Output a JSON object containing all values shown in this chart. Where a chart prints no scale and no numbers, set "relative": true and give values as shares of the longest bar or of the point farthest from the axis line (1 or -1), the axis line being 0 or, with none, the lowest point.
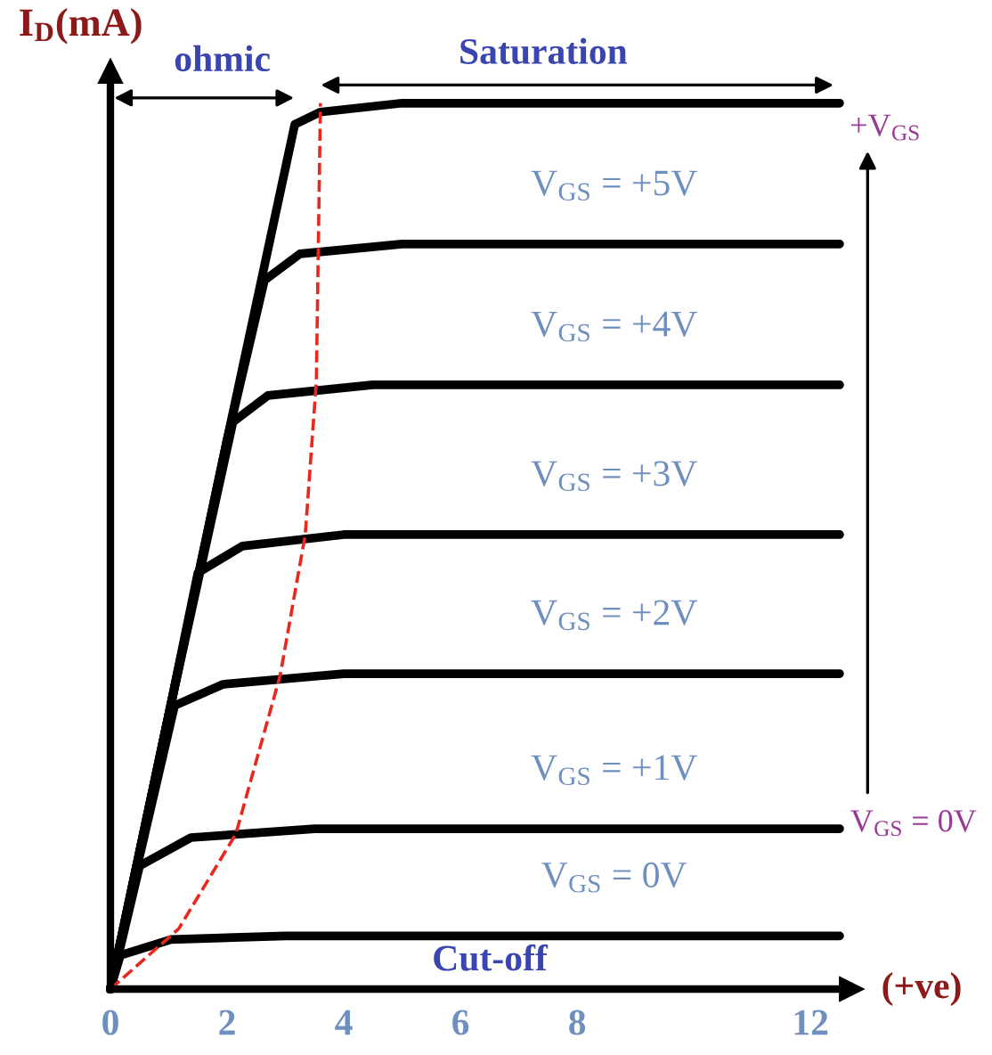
{
  "chart_data": {
    "type": "line",
    "relative": true,
    "ylabel": "I$_{D}$(mA)",
    "xlim": [
      0,
      12.7
    ],
    "xticks": [
      0,
      2,
      4,
      6,
      8,
      12
    ],
    "grid": false,
    "legend": false,
    "marker": "none",
    "series": [
      {
        "x": [
          0,
          1,
          2,
          3.16,
          3.6,
          5,
          12.5
        ],
        "values": [
          0,
          0.31,
          0.62,
          0.976,
          0.99,
          1.0,
          1.0
        ],
        "color": "#000000"
      },
      {
        "name": "V$_{GS}$ = +5V",
        "x": [
          0,
          1,
          2.0,
          2.64,
          3.25,
          5,
          12.5
        ],
        "values": [
          0,
          0.31,
          0.62,
          0.8,
          0.83,
          0.841,
          0.841
        ],
        "color": "#000000"
      },
      {
        "name": "V$_{GS}$ = +4V",
        "x": [
          0,
          1,
          2.1,
          2.7,
          4.5,
          12.5
        ],
        "values": [
          0,
          0.31,
          0.64,
          0.67,
          0.682,
          0.682
        ],
        "color": "#000000"
      },
      {
        "name": "V$_{GS}$ = +3V",
        "x": [
          0,
          1,
          1.5,
          2.26,
          4,
          12.5
        ],
        "values": [
          0,
          0.31,
          0.47,
          0.5,
          0.513,
          0.513
        ],
        "color": "#000000"
      },
      {
        "name": "V$_{GS}$ = +2V",
        "x": [
          0,
          0.5,
          1.1,
          1.93,
          4,
          12.5
        ],
        "values": [
          0,
          0.15,
          0.32,
          0.344,
          0.356,
          0.356
        ],
        "color": "#000000"
      },
      {
        "name": "V$_{GS}$ = +1V",
        "x": [
          0,
          0.5,
          1.38,
          3.5,
          12.5
        ],
        "values": [
          0,
          0.139,
          0.171,
          0.181,
          0.181
        ],
        "color": "#000000"
      },
      {
        "name": "V$_{GS}$ = 0V",
        "x": [
          0,
          0.17,
          1.04,
          3,
          12.5
        ],
        "values": [
          0,
          0.038,
          0.056,
          0.06,
          0.06
        ],
        "color": "#000000"
      },
      {
        "x": [
          0,
          1.17,
          2.15,
          2.91,
          3.34,
          3.53,
          3.6
        ],
        "values": [
          0,
          0.068,
          0.175,
          0.354,
          0.513,
          0.686,
          1.0
        ],
        "color": "#e8281e",
        "line_style": "dashed"
      }
    ],
    "annotations": [
      "ohmic",
      "Saturation",
      "Cut-off",
      "+V$_{GS}$",
      "V$_{GS}$ = 0V",
      "(+ve)"
    ]
  }
}
